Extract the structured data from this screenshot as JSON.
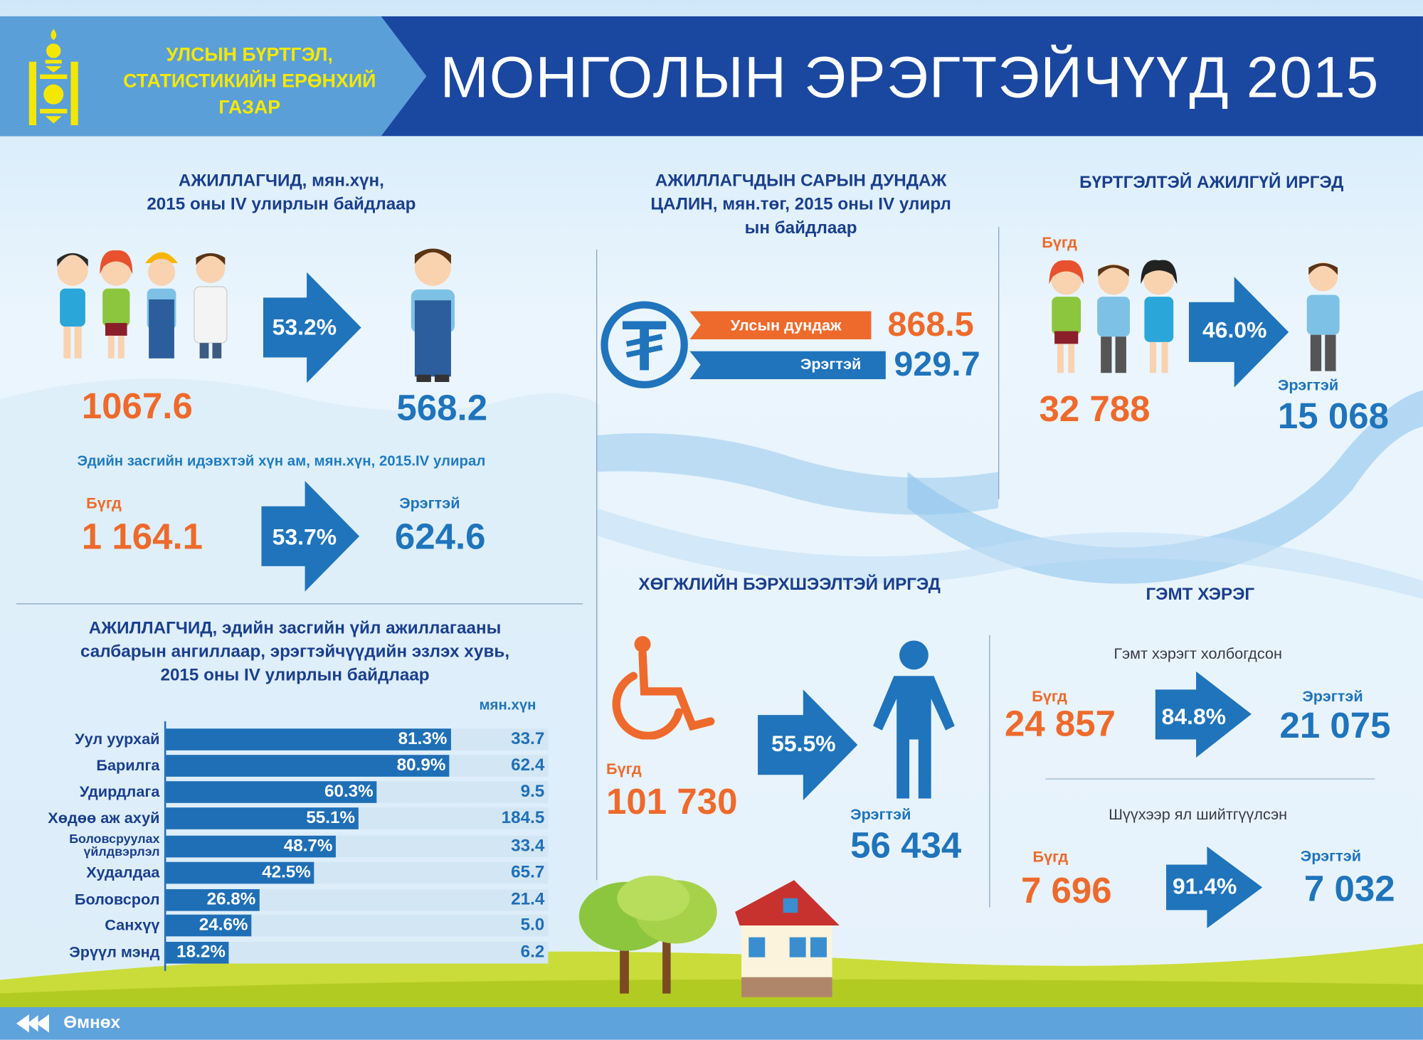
{
  "header": {
    "org_lines": [
      "УЛСЫН БҮРТГЭЛ,",
      "СТАТИСТИКИЙН ЕРӨНХИЙ",
      "ГАЗАР"
    ],
    "title": "МОНГОЛЫН ЭРЭГТЭЙЧҮҮД 2015",
    "colors": {
      "band": "#1a47a0",
      "org_band": "#5b9fd8",
      "org_text": "#f5e800"
    }
  },
  "employed": {
    "title_lines": [
      "АЖИЛЛАГЧИД, мян.хүн,",
      "2015 оны IV улирлын байдлаар"
    ],
    "total": "1067.6",
    "percent": "53.2%",
    "men": "568.2"
  },
  "active_pop": {
    "subtitle": "Эдийн засгийн идэвхтэй хүн ам, мян.хүн, 2015.IV улирал",
    "total_label": "Бүгд",
    "total": "1 164.1",
    "percent": "53.7%",
    "men_label": "Эрэгтэй",
    "men": "624.6"
  },
  "sectors": {
    "title_lines": [
      "АЖИЛЛАГЧИД, эдийн засгийн үйл ажиллагааны",
      "салбарын ангиллаар, эрэгтэйчүүдийн эзлэх хувь,",
      "2015 оны IV улирлын байдлаар"
    ],
    "unit": "мян.хүн"
  },
  "chart_data": {
    "type": "bar",
    "orientation": "horizontal",
    "categories": [
      "Уул уурхай",
      "Барилга",
      "Удирдлага",
      "Хөдөө аж ахуй",
      "Боловсруулах үйлдвэрлэл",
      "Худалдаа",
      "Боловсрол",
      "Санхүү",
      "Эрүүл мэнд"
    ],
    "series": [
      {
        "values": [
          81.3,
          80.9,
          60.3,
          55.1,
          48.7,
          42.5,
          26.8,
          24.6,
          18.2
        ]
      }
    ],
    "value_labels": [
      "81.3%",
      "80.9%",
      "60.3%",
      "55.1%",
      "48.7%",
      "42.5%",
      "26.8%",
      "24.6%",
      "18.2%"
    ],
    "right_values": [
      "33.7",
      "62.4",
      "9.5",
      "184.5",
      "33.4",
      "65.7",
      "21.4",
      "5.0",
      "6.2"
    ],
    "xlim": [
      0,
      100
    ],
    "bar_color": "#1f6fb6",
    "track_color": "#d3e6f4"
  },
  "salary": {
    "title_lines": [
      "АЖИЛЛАГЧДЫН САРЫН ДУНДАЖ",
      "ЦАЛИН, мян.төг, 2015 оны IV улирл",
      "ын байдлаар"
    ],
    "national_label": "Улсын дундаж",
    "national": "868.5",
    "men_label": "Эрэгтэй",
    "men": "929.7"
  },
  "unemployed": {
    "title": "БҮРТГЭЛТЭЙ АЖИЛГҮЙ ИРГЭД",
    "total_label": "Бүгд",
    "total": "32 788",
    "percent": "46.0%",
    "men_label": "Эрэгтэй",
    "men": "15 068"
  },
  "disabled": {
    "title": "ХӨГЖЛИЙН БЭРХШЭЭЛТЭЙ ИРГЭД",
    "total_label": "Бүгд",
    "total": "101 730",
    "percent": "55.5%",
    "men_label": "Эрэгтэй",
    "men": "56 434"
  },
  "crime": {
    "title": "ГЭМТ ХЭРЭГ",
    "involved": {
      "subtitle": "Гэмт хэрэгт холбогдсон",
      "total_label": "Бүгд",
      "total": "24 857",
      "percent": "84.8%",
      "men_label": "Эрэгтэй",
      "men": "21 075"
    },
    "sentenced": {
      "subtitle": "Шүүхээр ял шийтгүүлсэн",
      "total_label": "Бүгд",
      "total": "7 696",
      "percent": "91.4%",
      "men_label": "Эрэгтэй",
      "men": "7 032"
    }
  },
  "footer": {
    "back_label": "Өмнөх",
    "icon": "double-chevron-left-icon"
  },
  "colors": {
    "orange": "#ee6a2c",
    "blue": "#1f74bb",
    "navy": "#1a3f8c"
  }
}
